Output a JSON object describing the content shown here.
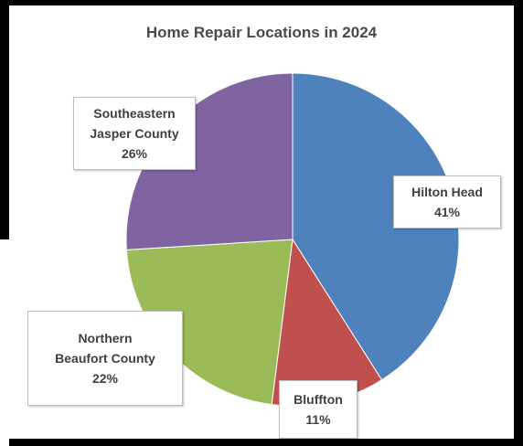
{
  "chart_data": {
    "type": "pie",
    "title": "Home Repair Locations in 2024",
    "slices": [
      {
        "label_lines": [
          "Hilton Head"
        ],
        "value": 41,
        "value_label": "41%",
        "color": "#4f81bd"
      },
      {
        "label_lines": [
          "Bluffton"
        ],
        "value": 11,
        "value_label": "11%",
        "color": "#c0504d"
      },
      {
        "label_lines": [
          "Northern",
          "Beaufort County"
        ],
        "value": 22,
        "value_label": "22%",
        "color": "#9bbb59"
      },
      {
        "label_lines": [
          "Southeastern",
          "Jasper County"
        ],
        "value": 26,
        "value_label": "26%",
        "color": "#8064a2"
      }
    ],
    "start_angle_deg": 0,
    "direction": "clockwise",
    "legend": "none",
    "data_labels": "outside callout boxes"
  }
}
